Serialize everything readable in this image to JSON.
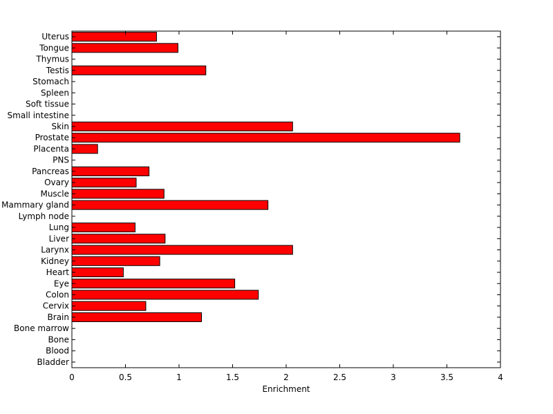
{
  "chart_data": {
    "type": "bar",
    "orientation": "horizontal",
    "xlabel": "Enrichment",
    "xlim": [
      0,
      4
    ],
    "xticks": [
      "0",
      "0.5",
      "1",
      "1.5",
      "2",
      "2.5",
      "3",
      "3.5",
      "4"
    ],
    "grid": false,
    "bar_color": "#ff0000",
    "categories": [
      "Bladder",
      "Blood",
      "Bone",
      "Bone marrow",
      "Brain",
      "Cervix",
      "Colon",
      "Eye",
      "Heart",
      "Kidney",
      "Larynx",
      "Liver",
      "Lung",
      "Lymph node",
      "Mammary gland",
      "Muscle",
      "Ovary",
      "Pancreas",
      "PNS",
      "Placenta",
      "Prostate",
      "Skin",
      "Small intestine",
      "Soft tissue",
      "Spleen",
      "Stomach",
      "Testis",
      "Thymus",
      "Tongue",
      "Uterus"
    ],
    "values": [
      0,
      0,
      0,
      0,
      1.21,
      0.69,
      1.74,
      1.52,
      0.48,
      0.82,
      2.06,
      0.87,
      0.59,
      0,
      1.83,
      0.86,
      0.6,
      0.72,
      0,
      0.24,
      3.62,
      2.06,
      0,
      0,
      0,
      0,
      1.25,
      0,
      0.99,
      0.79
    ]
  }
}
